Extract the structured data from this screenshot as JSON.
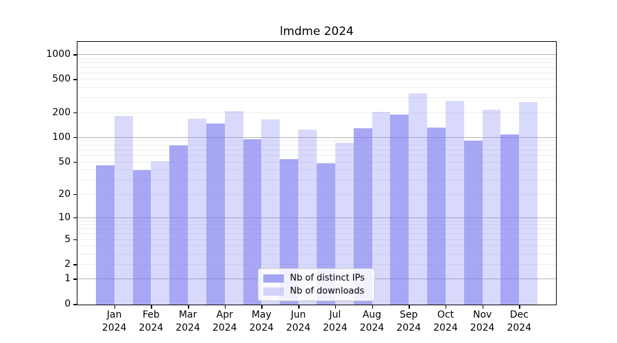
{
  "chart_data": {
    "type": "bar",
    "title": "lmdme 2024",
    "year": "2024",
    "categories": [
      "Jan",
      "Feb",
      "Mar",
      "Apr",
      "May",
      "Jun",
      "Jul",
      "Aug",
      "Sep",
      "Oct",
      "Nov",
      "Dec"
    ],
    "series": [
      {
        "name": "Nb of distinct IPs",
        "color": "rgba(120,120,240,0.65)",
        "values": [
          46,
          40,
          81,
          150,
          96,
          55,
          49,
          131,
          192,
          133,
          93,
          110
        ]
      },
      {
        "name": "Nb of downloads",
        "color": "rgba(120,120,240,0.28)",
        "values": [
          185,
          52,
          170,
          212,
          168,
          125,
          88,
          205,
          345,
          281,
          217,
          270
        ]
      }
    ],
    "xlabel": "",
    "ylabel": "",
    "y_axis": {
      "scale": "log1p",
      "ticks": [
        0,
        1,
        2,
        5,
        10,
        20,
        50,
        100,
        200,
        500,
        1000
      ],
      "ylim": [
        0,
        1430
      ]
    },
    "grid": {
      "on": true,
      "major_lines": [
        1,
        10,
        100,
        1000
      ],
      "minor_lines": [
        2,
        3,
        4,
        5,
        6,
        7,
        8,
        9,
        20,
        30,
        40,
        50,
        60,
        70,
        80,
        90,
        200,
        300,
        400,
        500,
        600,
        700,
        800,
        900
      ],
      "major_color": "#b4b4b4",
      "minor_color": "#ededed"
    },
    "legend": {
      "position": "lower center"
    }
  }
}
